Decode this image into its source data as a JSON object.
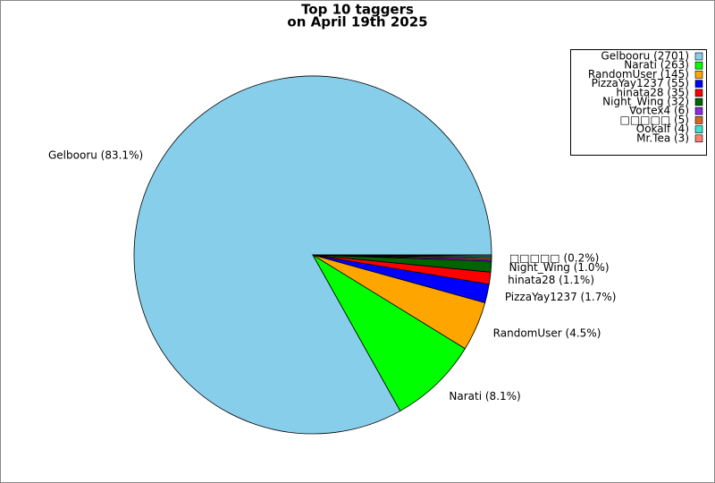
{
  "chart_data": {
    "type": "pie",
    "title": "Top 10 taggers",
    "subtitle": "on April 19th 2025",
    "categories": [
      "Gelbooru",
      "Narati",
      "RandomUser",
      "PizzaYay1237",
      "hinata28",
      "Night_Wing",
      "Vortex4",
      "□□□□□",
      "Ookalf",
      "Mr.Tea"
    ],
    "values": [
      2701,
      263,
      145,
      55,
      35,
      32,
      6,
      5,
      4,
      3
    ],
    "value_labels": [
      "Gelbooru (83.1%)",
      "Narati (8.1%)",
      "RandomUser (4.5%)",
      "PizzaYay1237 (1.7%)",
      "hinata28 (1.1%)",
      "Night_Wing (1.0%)",
      null,
      "□□□□□ (0.2%)",
      null,
      null
    ],
    "legend_labels": [
      "Gelbooru (2701)",
      "Narati (263)",
      "RandomUser (145)",
      "PizzaYay1237 (55)",
      "hinata28 (35)",
      "Night_Wing (32)",
      "Vortex4 (6)",
      "□□□□□ (5)",
      "Ookalf (4)",
      "Mr.Tea (3)"
    ],
    "colors": [
      "#87ceeb",
      "#00ff00",
      "#ffa500",
      "#0000ff",
      "#ff0000",
      "#006400",
      "#8a2be2",
      "#d2691e",
      "#40e0d0",
      "#fa8072"
    ],
    "legend": "upper right"
  }
}
